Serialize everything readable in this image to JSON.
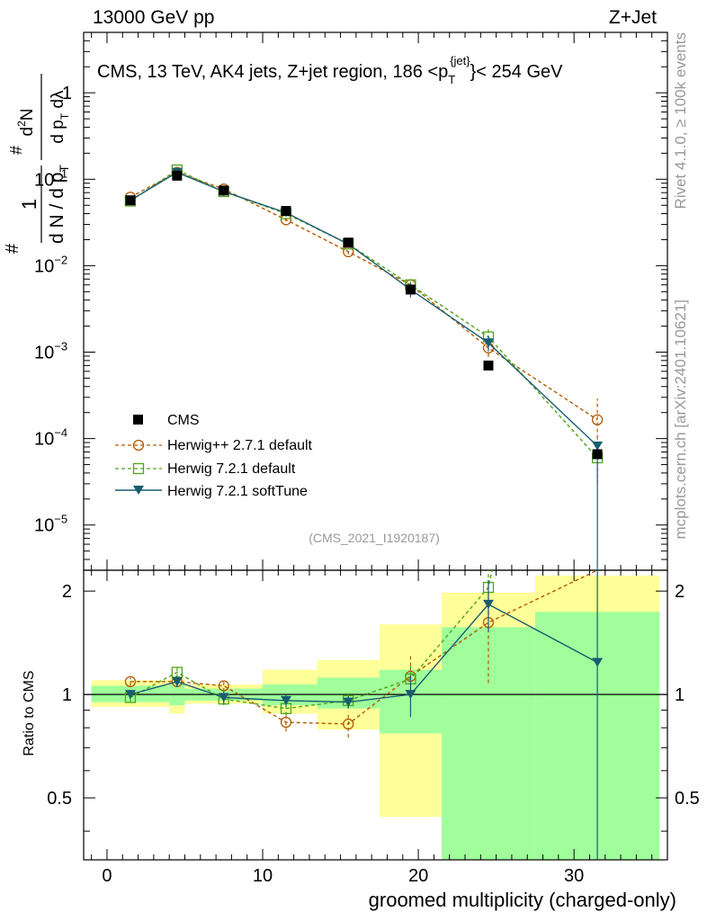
{
  "header": {
    "energy": "13000 GeV pp",
    "process": "Z+Jet",
    "side_rivet": "Rivet 4.1.0, ≥ 100k events",
    "side_mcplots": "mcplots.cern.ch [arXiv:2401.10621]",
    "analysis_id": "(CMS_2021_I1920187)"
  },
  "title": {
    "main": "CMS, 13 TeV, AK4 jets, Z+jet region, 186 <p",
    "sub": "T",
    "sup": "{jet}",
    "tail": "}< 254 GeV"
  },
  "xlabel": "groomed multiplicity (charged-only)",
  "ylabel_ratio": "Ratio to CMS",
  "legend": [
    "CMS",
    "Herwig++ 2.7.1 default",
    "Herwig 7.2.1 default",
    "Herwig 7.2.1 softTune"
  ],
  "colors": {
    "data": "#000000",
    "herwigpp": "#b35900",
    "herwig7": "#4da61a",
    "softtune": "#1a5c70",
    "band_inner": "#a0ff9b",
    "band_outer": "#ffff99"
  },
  "chart_data": {
    "type": "scatter",
    "xlim": [
      -1.5,
      36
    ],
    "ylim_main": [
      3e-06,
      5
    ],
    "ylim_ratio": [
      0.33,
      2.3
    ],
    "xticks": [
      0,
      10,
      20,
      30
    ],
    "xtick_labels": [
      "0",
      "10",
      "20",
      "30"
    ],
    "main_ytick_labels": [
      {
        "value": 1,
        "base": "1",
        "exp": ""
      },
      {
        "value": 0.1,
        "base": "10",
        "exp": "−1"
      },
      {
        "value": 0.01,
        "base": "10",
        "exp": "−2"
      },
      {
        "value": 0.001,
        "base": "10",
        "exp": "−3"
      },
      {
        "value": 0.0001,
        "base": "10",
        "exp": "−4"
      },
      {
        "value": 1e-05,
        "base": "10",
        "exp": "−5"
      }
    ],
    "ratio_ytick_labels": [
      {
        "value": 2,
        "label": "2"
      },
      {
        "value": 1,
        "label": "1"
      },
      {
        "value": 0.5,
        "label": "0.5"
      }
    ],
    "bins": [
      {
        "lo": -1,
        "hi": 4,
        "x": 1.5
      },
      {
        "lo": 4,
        "hi": 5,
        "x": 4.5
      },
      {
        "lo": 5,
        "hi": 10,
        "x": 7.5
      },
      {
        "lo": 10,
        "hi": 13.5,
        "x": 11.5
      },
      {
        "lo": 13.5,
        "hi": 17.5,
        "x": 15.5
      },
      {
        "lo": 17.5,
        "hi": 21.5,
        "x": 19.5
      },
      {
        "lo": 21.5,
        "hi": 27.5,
        "x": 24.5
      },
      {
        "lo": 27.5,
        "hi": 35.5,
        "x": 31.5
      }
    ],
    "data_values": [
      0.057,
      0.11,
      0.074,
      0.043,
      0.0185,
      0.0053,
      0.0007,
      6.6e-05
    ],
    "band_inner": [
      [
        0.95,
        1.06
      ],
      [
        0.93,
        1.08
      ],
      [
        0.96,
        1.04
      ],
      [
        0.93,
        1.07
      ],
      [
        0.91,
        1.12
      ],
      [
        0.77,
        1.18
      ],
      [
        0.33,
        1.57
      ],
      [
        0.33,
        1.74
      ]
    ],
    "band_outer": [
      [
        0.92,
        1.1
      ],
      [
        0.88,
        1.12
      ],
      [
        0.94,
        1.07
      ],
      [
        0.88,
        1.18
      ],
      [
        0.79,
        1.26
      ],
      [
        0.44,
        1.6
      ],
      [
        0.33,
        1.98
      ],
      [
        0.33,
        2.22
      ]
    ],
    "series": [
      {
        "name": "Herwig++ 2.7.1 default",
        "marker": "circle",
        "dash": true,
        "color_key": "herwigpp",
        "x": [
          1.5,
          4.5,
          7.5,
          11.5,
          15.5,
          19.5,
          24.5,
          31.5
        ],
        "values": [
          0.062,
          0.12,
          0.077,
          0.034,
          0.0145,
          0.006,
          0.00112,
          0.000165
        ],
        "err_lo": [
          0.06,
          0.115,
          0.074,
          0.0325,
          0.0135,
          0.005,
          0.00088,
          0.0001
        ],
        "err_hi": [
          0.064,
          0.125,
          0.08,
          0.0355,
          0.0155,
          0.007,
          0.0014,
          0.00029
        ],
        "ratio": [
          1.09,
          1.09,
          1.06,
          0.83,
          0.82,
          1.13,
          1.62,
          2.3
        ],
        "ratio_err_lo": [
          1.06,
          1.05,
          1.02,
          0.78,
          0.75,
          0.98,
          1.08,
          2.2
        ],
        "ratio_err_hi": [
          1.12,
          1.13,
          1.1,
          0.88,
          0.89,
          1.3,
          2.15,
          2.3
        ]
      },
      {
        "name": "Herwig 7.2.1 default",
        "marker": "square",
        "dash": true,
        "color_key": "herwig7",
        "x": [
          1.5,
          4.5,
          7.5,
          11.5,
          15.5,
          19.5,
          24.5,
          31.5
        ],
        "values": [
          0.056,
          0.128,
          0.072,
          0.04,
          0.0178,
          0.006,
          0.0015,
          6e-05
        ],
        "err_lo": [
          0.054,
          0.122,
          0.069,
          0.038,
          0.0168,
          0.0054,
          0.0012,
          3e-05
        ],
        "err_hi": [
          0.058,
          0.134,
          0.075,
          0.042,
          0.0188,
          0.0066,
          0.0019,
          0.0001
        ],
        "ratio": [
          0.98,
          1.16,
          0.97,
          0.91,
          0.96,
          1.11,
          2.05,
          null
        ],
        "ratio_err_lo": [
          0.95,
          1.12,
          0.93,
          0.87,
          0.91,
          1.0,
          1.7,
          null
        ],
        "ratio_err_hi": [
          1.01,
          1.2,
          1.01,
          0.95,
          1.01,
          1.24,
          2.3,
          null
        ]
      },
      {
        "name": "Herwig 7.2.1 softTune",
        "marker": "triangle",
        "dash": false,
        "color_key": "softtune",
        "x": [
          1.5,
          4.5,
          7.5,
          11.5,
          15.5,
          19.5,
          24.5,
          31.5
        ],
        "values": [
          0.057,
          0.12,
          0.072,
          0.041,
          0.0178,
          0.0053,
          0.00128,
          8.2e-05
        ],
        "err_lo": [
          0.055,
          0.115,
          0.069,
          0.039,
          0.0168,
          0.0043,
          0.00102,
          3e-06
        ],
        "err_hi": [
          0.059,
          0.125,
          0.075,
          0.043,
          0.0188,
          0.0063,
          0.00154,
          9e-05
        ],
        "ratio": [
          1.0,
          1.09,
          0.98,
          0.96,
          0.95,
          1.0,
          1.83,
          1.24
        ],
        "ratio_err_lo": [
          0.97,
          1.05,
          0.94,
          0.92,
          0.91,
          0.86,
          1.52,
          0.33
        ],
        "ratio_err_hi": [
          1.03,
          1.13,
          1.02,
          1.0,
          0.99,
          1.14,
          2.15,
          2.3
        ]
      }
    ]
  }
}
